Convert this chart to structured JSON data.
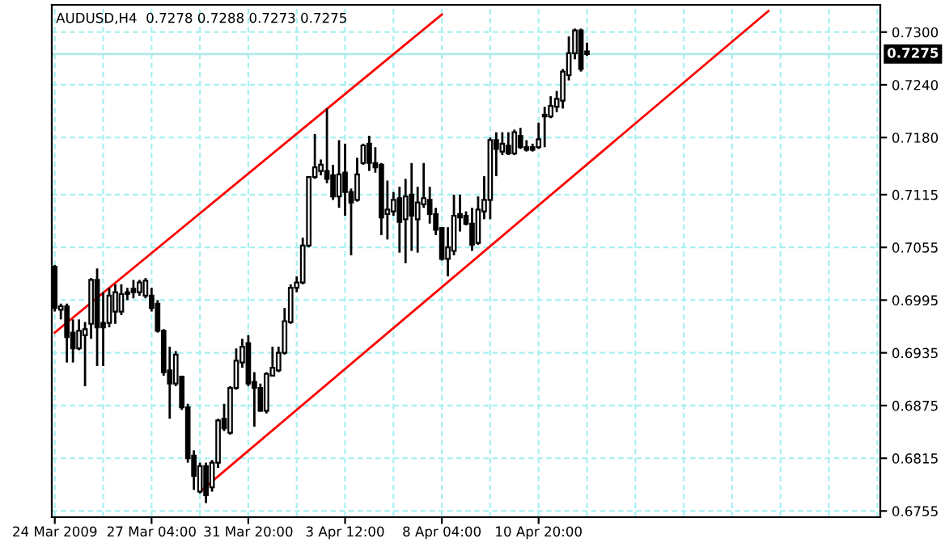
{
  "chart_data": {
    "type": "candlestick",
    "title": "AUDUSD,H4  0.7278 0.7288 0.7273 0.7275",
    "categories": [
      "24 Mar 2009",
      null,
      null,
      null,
      null,
      null,
      null,
      null,
      null,
      null,
      null,
      null,
      null,
      null,
      null,
      null,
      "27 Mar 04:00",
      null,
      null,
      null,
      null,
      null,
      null,
      null,
      null,
      null,
      null,
      null,
      null,
      null,
      null,
      null,
      "31 Mar 20:00",
      null,
      null,
      null,
      null,
      null,
      null,
      null,
      null,
      null,
      null,
      null,
      null,
      null,
      null,
      null,
      "3 Apr 12:00",
      null,
      null,
      null,
      null,
      null,
      null,
      null,
      null,
      null,
      null,
      null,
      null,
      null,
      null,
      null,
      "8 Apr 04:00",
      null,
      null,
      null,
      null,
      null,
      null,
      null,
      null,
      null,
      null,
      null,
      null,
      null,
      null,
      null,
      "10 Apr 20:00",
      null,
      null,
      null,
      null,
      null,
      null,
      null,
      null,
      null,
      null,
      null,
      null,
      null,
      null,
      null,
      null,
      null,
      null,
      null,
      null,
      null,
      null,
      null,
      null,
      null,
      null,
      null,
      null,
      null,
      null,
      null,
      null,
      null,
      null,
      null,
      null,
      null,
      null,
      null,
      null,
      null,
      null,
      null,
      null,
      null,
      null,
      null,
      null,
      null,
      null,
      null,
      null,
      null,
      null,
      null,
      null
    ],
    "ohlc": [
      [
        0.7033,
        0.7035,
        0.6982,
        0.6986
      ],
      [
        0.6984,
        0.6991,
        0.6973,
        0.6988
      ],
      [
        0.6988,
        0.6991,
        0.6924,
        0.6953
      ],
      [
        0.6958,
        0.6973,
        0.6924,
        0.694
      ],
      [
        0.694,
        0.6973,
        0.6938,
        0.696
      ],
      [
        0.6955,
        0.697,
        0.6897,
        0.6962
      ],
      [
        0.6968,
        0.702,
        0.6951,
        0.7018
      ],
      [
        0.7018,
        0.7031,
        0.692,
        0.6964
      ],
      [
        0.6969,
        0.7004,
        0.692,
        0.6964
      ],
      [
        0.6969,
        0.7009,
        0.6964,
        0.7
      ],
      [
        0.6982,
        0.7013,
        0.6968,
        0.7004
      ],
      [
        0.6982,
        0.7013,
        0.6978,
        0.7002
      ],
      [
        0.7002,
        0.7009,
        0.6995,
        0.7004
      ],
      [
        0.7008,
        0.7018,
        0.6997,
        0.7004
      ],
      [
        0.7004,
        0.7018,
        0.7,
        0.7015
      ],
      [
        0.7,
        0.702,
        0.6997,
        0.7017
      ],
      [
        0.7,
        0.7009,
        0.6982,
        0.6986
      ],
      [
        0.6991,
        0.6995,
        0.6958,
        0.696
      ],
      [
        0.696,
        0.6962,
        0.6909,
        0.6913
      ],
      [
        0.6915,
        0.6942,
        0.686,
        0.69
      ],
      [
        0.69,
        0.6937,
        0.6897,
        0.6933
      ],
      [
        0.6908,
        0.6909,
        0.687,
        0.6873
      ],
      [
        0.6873,
        0.6877,
        0.681,
        0.6815
      ],
      [
        0.6818,
        0.6824,
        0.6779,
        0.6795
      ],
      [
        0.6777,
        0.681,
        0.6775,
        0.6806
      ],
      [
        0.6806,
        0.681,
        0.6764,
        0.6773
      ],
      [
        0.6782,
        0.6813,
        0.6777,
        0.681
      ],
      [
        0.681,
        0.686,
        0.6804,
        0.6858
      ],
      [
        0.686,
        0.6877,
        0.6846,
        0.6849
      ],
      [
        0.6844,
        0.6897,
        0.6842,
        0.6895
      ],
      [
        0.6895,
        0.694,
        0.6893,
        0.6926
      ],
      [
        0.6924,
        0.6951,
        0.6918,
        0.6942
      ],
      [
        0.6946,
        0.6955,
        0.6897,
        0.69
      ],
      [
        0.6902,
        0.6913,
        0.6851,
        0.6895
      ],
      [
        0.6895,
        0.69,
        0.6868,
        0.6869
      ],
      [
        0.6869,
        0.6913,
        0.6866,
        0.6911
      ],
      [
        0.6909,
        0.6942,
        0.6908,
        0.6918
      ],
      [
        0.6915,
        0.6942,
        0.6913,
        0.6935
      ],
      [
        0.6935,
        0.6986,
        0.6933,
        0.6971
      ],
      [
        0.697,
        0.7013,
        0.6968,
        0.7009
      ],
      [
        0.7009,
        0.7022,
        0.7004,
        0.7015
      ],
      [
        0.7015,
        0.7066,
        0.7013,
        0.7057
      ],
      [
        0.7057,
        0.7136,
        0.7055,
        0.7135
      ],
      [
        0.7135,
        0.7184,
        0.7133,
        0.7146
      ],
      [
        0.7142,
        0.7155,
        0.7137,
        0.7149
      ],
      [
        0.7142,
        0.7213,
        0.7128,
        0.7133
      ],
      [
        0.7137,
        0.7149,
        0.7109,
        0.7113
      ],
      [
        0.7113,
        0.7177,
        0.71,
        0.7138
      ],
      [
        0.714,
        0.7173,
        0.7091,
        0.7118
      ],
      [
        0.7118,
        0.7122,
        0.7046,
        0.7106
      ],
      [
        0.7109,
        0.7157,
        0.7107,
        0.7138
      ],
      [
        0.7151,
        0.7173,
        0.7149,
        0.7171
      ],
      [
        0.7173,
        0.7182,
        0.7142,
        0.7151
      ],
      [
        0.7151,
        0.7169,
        0.714,
        0.7146
      ],
      [
        0.7149,
        0.7151,
        0.7069,
        0.7089
      ],
      [
        0.7093,
        0.7131,
        0.7064,
        0.7098
      ],
      [
        0.7096,
        0.7118,
        0.7091,
        0.7109
      ],
      [
        0.7111,
        0.7124,
        0.7049,
        0.7084
      ],
      [
        0.7087,
        0.7133,
        0.7037,
        0.7113
      ],
      [
        0.7115,
        0.7151,
        0.7051,
        0.7091
      ],
      [
        0.7087,
        0.7124,
        0.7049,
        0.7106
      ],
      [
        0.7104,
        0.7151,
        0.71,
        0.7111
      ],
      [
        0.7109,
        0.7124,
        0.7082,
        0.7093
      ],
      [
        0.7093,
        0.71,
        0.7069,
        0.7075
      ],
      [
        0.7077,
        0.7078,
        0.704,
        0.7042
      ],
      [
        0.7042,
        0.7078,
        0.7022,
        0.7055
      ],
      [
        0.7051,
        0.7115,
        0.7046,
        0.7091
      ],
      [
        0.7093,
        0.7115,
        0.7073,
        0.7089
      ],
      [
        0.7091,
        0.7096,
        0.708,
        0.7082
      ],
      [
        0.7082,
        0.71,
        0.7051,
        0.7058
      ],
      [
        0.706,
        0.7113,
        0.7058,
        0.7098
      ],
      [
        0.7096,
        0.7136,
        0.7087,
        0.7109
      ],
      [
        0.7109,
        0.718,
        0.7087,
        0.7177
      ],
      [
        0.7177,
        0.7186,
        0.7136,
        0.7167
      ],
      [
        0.7164,
        0.7186,
        0.716,
        0.7173
      ],
      [
        0.7171,
        0.7186,
        0.716,
        0.7162
      ],
      [
        0.7162,
        0.7189,
        0.716,
        0.7186
      ],
      [
        0.7182,
        0.7191,
        0.7167,
        0.7169
      ],
      [
        0.7169,
        0.7177,
        0.7164,
        0.7166
      ],
      [
        0.7169,
        0.7173,
        0.7164,
        0.7166
      ],
      [
        0.7169,
        0.7197,
        0.7167,
        0.7178
      ],
      [
        0.7204,
        0.7215,
        0.7169,
        0.7206
      ],
      [
        0.7204,
        0.7227,
        0.7202,
        0.7216
      ],
      [
        0.7215,
        0.7233,
        0.7209,
        0.7224
      ],
      [
        0.7222,
        0.7258,
        0.7213,
        0.7255
      ],
      [
        0.7251,
        0.7295,
        0.7245,
        0.7276
      ],
      [
        0.7276,
        0.7304,
        0.7269,
        0.7302
      ],
      [
        0.7302,
        0.7304,
        0.7255,
        0.7258
      ],
      [
        0.7278,
        0.7288,
        0.7273,
        0.7275
      ],
      null,
      null,
      null,
      null,
      null,
      null,
      null,
      null,
      null,
      null,
      null,
      null,
      null,
      null,
      null,
      null,
      null,
      null,
      null,
      null,
      null,
      null,
      null,
      null,
      null,
      null,
      null,
      null,
      null,
      null,
      null,
      null,
      null,
      null,
      null,
      null,
      null,
      null,
      null,
      null,
      null,
      null,
      null,
      null,
      null,
      null,
      null,
      null
    ],
    "series": [
      {
        "type": "line",
        "color": "#ff0000",
        "values": [
          0.6958,
          null,
          null,
          null,
          null,
          null,
          null,
          null,
          null,
          null,
          null,
          null,
          null,
          null,
          null,
          null,
          null,
          null,
          null,
          null,
          null,
          null,
          null,
          null,
          null,
          null,
          null,
          null,
          null,
          null,
          null,
          null,
          null,
          null,
          null,
          null,
          null,
          null,
          null,
          null,
          null,
          null,
          null,
          null,
          null,
          null,
          null,
          null,
          null,
          null,
          null,
          null,
          null,
          null,
          null,
          null,
          null,
          null,
          null,
          null,
          null,
          null,
          null,
          null,
          0.732,
          null,
          null,
          null,
          null,
          null,
          null,
          null,
          null,
          null,
          null,
          null,
          null,
          null,
          null,
          null,
          null,
          null,
          null,
          null,
          null,
          null,
          null,
          null,
          null,
          null,
          null,
          null,
          null,
          null,
          null,
          null,
          null,
          null,
          null,
          null,
          null,
          null,
          null,
          null,
          null,
          null,
          null,
          null,
          null,
          null,
          null,
          null,
          null,
          null,
          null,
          null,
          null,
          null,
          null,
          null,
          null,
          null,
          null,
          null,
          null,
          null,
          null,
          null,
          null,
          null,
          null,
          null,
          null,
          null,
          null,
          null,
          null
        ]
      },
      {
        "type": "line",
        "color": "#ff0000",
        "values": [
          null,
          null,
          null,
          null,
          null,
          null,
          null,
          null,
          null,
          null,
          null,
          null,
          null,
          null,
          null,
          null,
          null,
          null,
          null,
          null,
          null,
          null,
          null,
          null,
          0.6777,
          null,
          null,
          null,
          null,
          null,
          null,
          null,
          null,
          null,
          null,
          null,
          null,
          null,
          null,
          null,
          null,
          null,
          null,
          null,
          null,
          null,
          null,
          null,
          null,
          null,
          null,
          null,
          null,
          null,
          null,
          null,
          null,
          null,
          null,
          null,
          null,
          null,
          null,
          null,
          null,
          null,
          null,
          null,
          null,
          null,
          null,
          null,
          null,
          null,
          null,
          null,
          null,
          null,
          null,
          null,
          null,
          null,
          null,
          null,
          null,
          null,
          null,
          null,
          null,
          null,
          null,
          null,
          null,
          null,
          null,
          null,
          null,
          null,
          null,
          null,
          null,
          null,
          null,
          null,
          null,
          null,
          null,
          null,
          null,
          null,
          null,
          null,
          null,
          null,
          null,
          null,
          null,
          null,
          0.7324,
          null,
          null,
          null,
          null,
          null,
          null,
          null,
          null,
          null,
          null,
          null,
          null,
          null,
          null,
          null,
          null,
          null,
          null
        ]
      }
    ],
    "ylim": [
      0.6748,
      0.7331
    ],
    "yticks": [
      {
        "value": 0.6755,
        "label": "0.6755"
      },
      {
        "value": 0.6815,
        "label": "0.6815"
      },
      {
        "value": 0.6875,
        "label": "0.6875"
      },
      {
        "value": 0.6935,
        "label": "0.6935"
      },
      {
        "value": 0.6995,
        "label": "0.6995"
      },
      {
        "value": 0.7055,
        "label": "0.7055"
      },
      {
        "value": 0.7115,
        "label": "0.7115"
      },
      {
        "value": 0.718,
        "label": "0.7180"
      },
      {
        "value": 0.724,
        "label": "0.7240"
      },
      {
        "value": 0.73,
        "label": "0.7300"
      }
    ],
    "ref_lines": [
      {
        "axis": "y",
        "value": 0.7275,
        "label": "0.7275",
        "color": "#b0e8e8"
      }
    ],
    "grid": true
  }
}
